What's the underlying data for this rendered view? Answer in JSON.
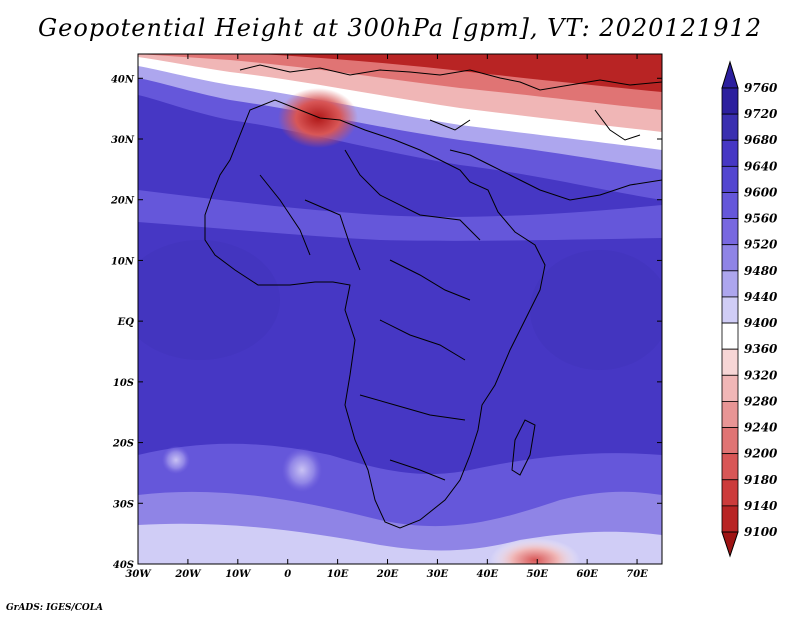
{
  "title": "Geopotential Height at 300hPa [gpm], VT: 2020121912",
  "credit": "GrADS: IGES/COLA",
  "map": {
    "lat_labels": [
      "40N",
      "30N",
      "20N",
      "10N",
      "EQ",
      "10S",
      "20S",
      "30S",
      "40S"
    ],
    "lat_values": [
      40,
      30,
      20,
      10,
      0,
      -10,
      -20,
      -30,
      -40
    ],
    "lon_labels": [
      "30W",
      "20W",
      "10W",
      "0",
      "10E",
      "20E",
      "30E",
      "40E",
      "50E",
      "60E",
      "70E"
    ],
    "lon_values": [
      -30,
      -20,
      -10,
      0,
      10,
      20,
      30,
      40,
      50,
      60,
      70
    ],
    "lat_range": [
      -40,
      44
    ],
    "lon_range": [
      -30,
      75
    ]
  },
  "colorbar": {
    "levels": [
      "9760",
      "9720",
      "9680",
      "9640",
      "9600",
      "9560",
      "9520",
      "9480",
      "9440",
      "9400",
      "9360",
      "9320",
      "9280",
      "9240",
      "9200",
      "9180",
      "9140",
      "9100"
    ],
    "colors": [
      "#2c1f9e",
      "#3a2fb0",
      "#4637c4",
      "#5346d0",
      "#6557da",
      "#7868e0",
      "#8f84e6",
      "#ada6ee",
      "#d0cdf6",
      "#ffffff",
      "#f7d6d6",
      "#f0b6b6",
      "#e89595",
      "#e07474",
      "#d85656",
      "#cc3b3b",
      "#b82424",
      "#9e1414"
    ]
  }
}
